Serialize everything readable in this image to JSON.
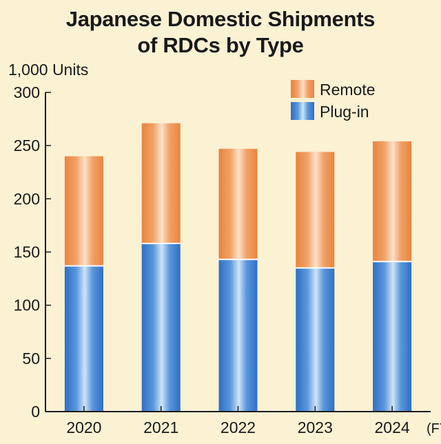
{
  "chart_data": {
    "type": "bar",
    "stacked": true,
    "title": [
      "Japanese Domestic Shipments",
      "of RDCs by Type"
    ],
    "unit_label": "1,000 Units",
    "x_suffix": "(FY)",
    "categories": [
      "2020",
      "2021",
      "2022",
      "2023",
      "2024"
    ],
    "series": [
      {
        "name": "Plug-in",
        "values": [
          137,
          158,
          143,
          135,
          141
        ]
      },
      {
        "name": "Remote",
        "values": [
          103,
          113,
          104,
          109,
          113
        ]
      }
    ],
    "ylim": [
      0,
      300
    ],
    "yticks": [
      0,
      50,
      100,
      150,
      200,
      250,
      300
    ],
    "grid": false,
    "legend_position": "top-right",
    "colors": {
      "Plug-in": {
        "edge": "#2f6fc4",
        "light": "#cfe3f6",
        "mid": "#5a97dc"
      },
      "Remote": {
        "edge": "#e8843f",
        "light": "#fbe1c8",
        "mid": "#f1a267"
      },
      "axis": "#1a1a1a",
      "background": "#fbf1d3"
    }
  }
}
